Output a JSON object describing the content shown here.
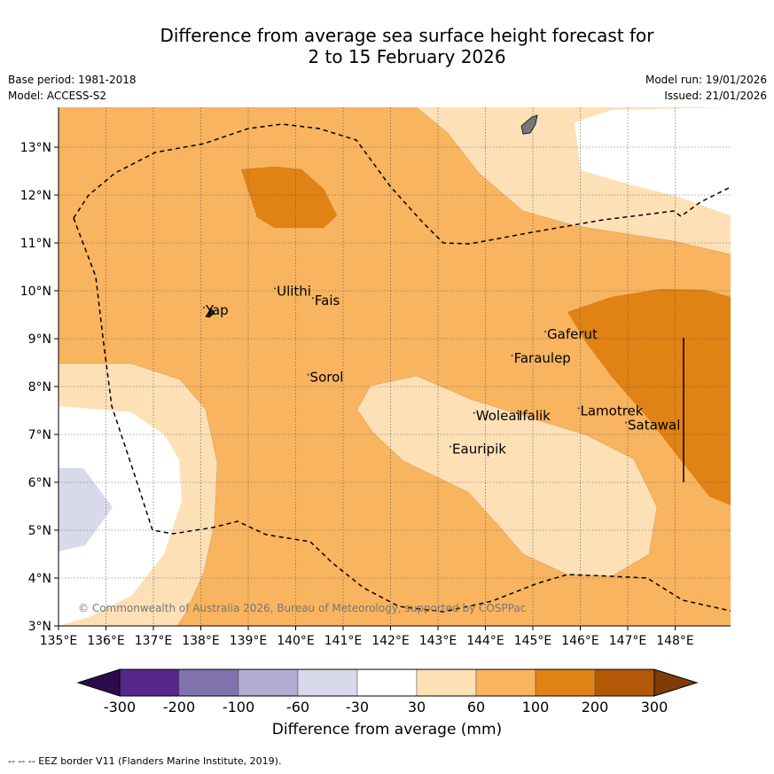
{
  "title": {
    "line1": "Difference from average sea surface height forecast for",
    "line2": "2 to 15 February 2026"
  },
  "meta": {
    "base_period": "Base period: 1981-2018",
    "model": "Model: ACCESS-S2",
    "model_run": "Model run: 19/01/2026",
    "issued": "Issued: 21/01/2026"
  },
  "map": {
    "lon_range": [
      135.0,
      149.0
    ],
    "lat_range": [
      3.0,
      13.8
    ],
    "lon_ticks": [
      "135°E",
      "136°E",
      "137°E",
      "138°E",
      "139°E",
      "140°E",
      "141°E",
      "142°E",
      "143°E",
      "144°E",
      "145°E",
      "146°E",
      "147°E",
      "148°E"
    ],
    "lat_ticks": [
      "3°N",
      "4°N",
      "5°N",
      "6°N",
      "7°N",
      "8°N",
      "9°N",
      "10°N",
      "11°N",
      "12°N",
      "13°N"
    ],
    "copyright": "© Commonwealth of Australia 2026, Bureau of Meteorology, supported by COSPPac",
    "places": [
      {
        "name": "Yap",
        "lon": 138.1,
        "lat": 9.5
      },
      {
        "name": "Ulithi",
        "lon": 139.6,
        "lat": 9.9
      },
      {
        "name": "Fais",
        "lon": 140.4,
        "lat": 9.7
      },
      {
        "name": "Sorol",
        "lon": 140.3,
        "lat": 8.1
      },
      {
        "name": "Gaferut",
        "lon": 145.3,
        "lat": 9.0
      },
      {
        "name": "Faraulep",
        "lon": 144.6,
        "lat": 8.5
      },
      {
        "name": "Woleai",
        "lon": 143.8,
        "lat": 7.3
      },
      {
        "name": "Ifalik",
        "lon": 144.7,
        "lat": 7.3
      },
      {
        "name": "Eauripik",
        "lon": 143.3,
        "lat": 6.6
      },
      {
        "name": "Lamotrek",
        "lon": 146.0,
        "lat": 7.4
      },
      {
        "name": "Satawal",
        "lon": 147.0,
        "lat": 7.1
      }
    ]
  },
  "legend": {
    "colors": {
      "below_300": "#2d0a4e",
      "m300_m200": "#542788",
      "m200_m100": "#8073ac",
      "m100_m60": "#b2abd2",
      "m60_m30": "#d8daeb",
      "m30_30": "#ffffff",
      "p30_60": "#fee0b6",
      "p60_100": "#f9b45f",
      "p100_200": "#e08214",
      "p200_300": "#b35806",
      "above_300": "#7f3b08"
    },
    "tick_labels": [
      "-300",
      "-200",
      "-100",
      "-60",
      "-30",
      "30",
      "60",
      "100",
      "200",
      "300"
    ],
    "axis_label": "Difference from average (mm)"
  },
  "footnote": "--  --  -- EEZ border V11 (Flanders Marine Institute, 2019)."
}
